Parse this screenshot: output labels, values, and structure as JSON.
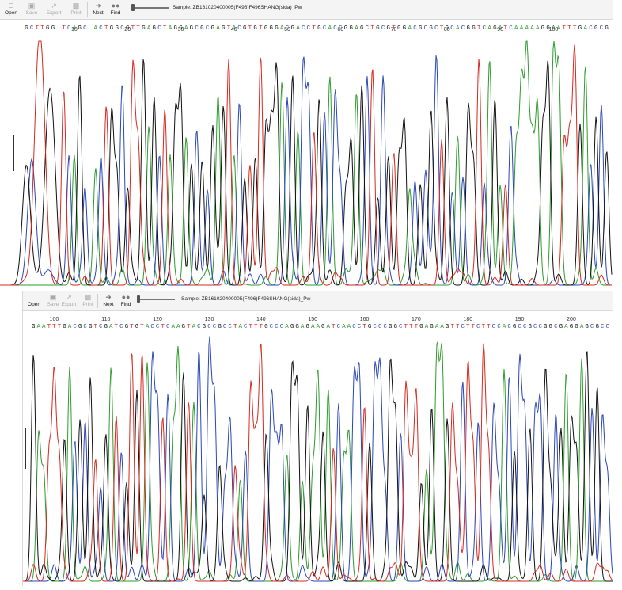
{
  "panels": [
    {
      "id": "top",
      "toolbar": {
        "open": "Open",
        "save": "Save",
        "export": "Export",
        "print": "Print",
        "next": "Next",
        "find": "Find",
        "sample_label": "Sample: ZB161020400005(F496)F496SHANG(sida)_Pw",
        "zoom_level": 0.4
      },
      "basecalls": "GCTTGG TCAGC ACTGGCGTTGAGCTAGGAGCGCGAGTACGTGTGGGACGACCTGCACCGGAGCTGCGTGGACGCGCTGCACGGTCAGATCAAAAAGGAATTTGACGCG",
      "position_ticks": [
        {
          "pos": 10,
          "label": "10"
        },
        {
          "pos": 20,
          "label": "20"
        },
        {
          "pos": 30,
          "label": "30"
        },
        {
          "pos": 40,
          "label": "40"
        },
        {
          "pos": 50,
          "label": "50"
        },
        {
          "pos": 60,
          "label": "60"
        },
        {
          "pos": 70,
          "label": "70"
        },
        {
          "pos": 80,
          "label": "80"
        },
        {
          "pos": 90,
          "label": "90"
        },
        {
          "pos": 100,
          "label": "100"
        }
      ],
      "start_position": 1
    },
    {
      "id": "bottom",
      "toolbar": {
        "open": "Open",
        "save": "Save",
        "export": "Export",
        "print": "Print",
        "next": "Next",
        "find": "Find",
        "sample_label": "Sample: ZB161020400005(F496)F496SHANG(sida)_Pw",
        "zoom_level": 0.35
      },
      "basecalls": "GAATTTGACGCGTCGATCGTGTACCTCAAGTACGCCGCCTACTTTGCCCAGGAGAAGATCAACCTGCCCGGCTTTGAGAAGTTCTTCTTCCACGCCGCCGGCGAGGAGCGCC",
      "position_ticks": [
        {
          "pos": 100,
          "label": "100"
        },
        {
          "pos": 110,
          "label": "110"
        },
        {
          "pos": 120,
          "label": "120"
        },
        {
          "pos": 130,
          "label": "130"
        },
        {
          "pos": 140,
          "label": "140"
        },
        {
          "pos": 150,
          "label": "150"
        },
        {
          "pos": 160,
          "label": "160"
        },
        {
          "pos": 170,
          "label": "170"
        },
        {
          "pos": 180,
          "label": "180"
        },
        {
          "pos": 190,
          "label": "190"
        },
        {
          "pos": 200,
          "label": "200"
        }
      ],
      "start_position": 96
    }
  ],
  "colors": {
    "A": "#2e9b2e",
    "C": "#2a46b8",
    "G": "#111111",
    "T": "#d6281f"
  },
  "icons": [
    "open-folder-icon",
    "save-disk-icon",
    "export-icon",
    "print-icon",
    "next-arrow-icon",
    "find-binoculars-icon"
  ]
}
